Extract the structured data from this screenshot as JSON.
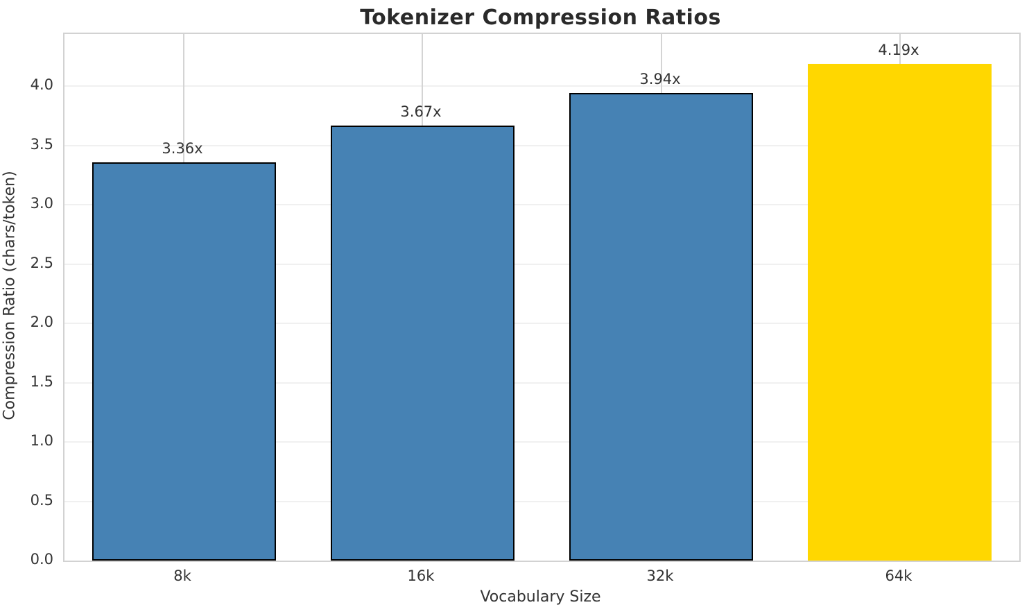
{
  "chart_data": {
    "type": "bar",
    "title": "Tokenizer Compression Ratios",
    "xlabel": "Vocabulary Size",
    "ylabel": "Compression Ratio (chars/token)",
    "categories": [
      "8k",
      "16k",
      "32k",
      "64k"
    ],
    "values": [
      3.36,
      3.67,
      3.94,
      4.19
    ],
    "bar_labels": [
      "3.36x",
      "3.67x",
      "3.94x",
      "4.19x"
    ],
    "bar_colors": [
      "#4682B4",
      "#4682B4",
      "#4682B4",
      "#FFD700"
    ],
    "bar_edge_colors": [
      "#000000",
      "#000000",
      "#000000",
      "none"
    ],
    "highlighted_category": "64k",
    "ylim": [
      0,
      4.44
    ],
    "ytick_step": 0.5,
    "yticks": [
      "0.0",
      "0.5",
      "1.0",
      "1.5",
      "2.0",
      "2.5",
      "3.0",
      "3.5",
      "4.0"
    ],
    "grid": true,
    "legend": "none",
    "colors": {
      "background": "#ffffff",
      "spine": "#d2d2d2",
      "h_grid": "#f0f0f0",
      "v_grid": "#d4d4d4",
      "text": "#333333",
      "title_text": "#2a2a2a"
    }
  }
}
